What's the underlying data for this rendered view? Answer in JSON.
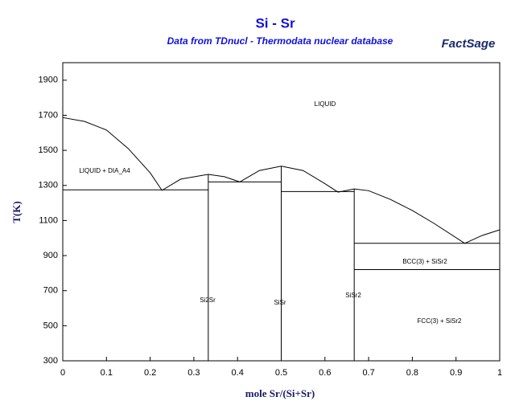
{
  "chart_data": {
    "type": "line",
    "title": "Si - Sr",
    "subtitle": "Data from TDnucl - Thermodata nuclear database",
    "logo": "FactSage",
    "x_label": "mole Sr/(Si+Sr)",
    "y_label": "T(K)",
    "xlim": [
      0,
      1
    ],
    "ylim": [
      300,
      2000
    ],
    "xticks": [
      0,
      0.1,
      0.2,
      0.3,
      0.4,
      0.5,
      0.6,
      0.7,
      0.8,
      0.9,
      1
    ],
    "yticks": [
      300,
      500,
      700,
      900,
      1100,
      1300,
      1500,
      1700,
      1900
    ],
    "series": [
      {
        "color": "#000000",
        "x": [
          0,
          0.05,
          0.1,
          0.15,
          0.2,
          0.227,
          0.27,
          0.333,
          0.37,
          0.405,
          0.45,
          0.5,
          0.55,
          0.6,
          0.63,
          0.667,
          0.7,
          0.75,
          0.8,
          0.85,
          0.92,
          0.96,
          1
        ],
        "values": [
          1687,
          1665,
          1616,
          1510,
          1372,
          1272,
          1336,
          1363,
          1350,
          1320,
          1385,
          1410,
          1385,
          1310,
          1262,
          1280,
          1270,
          1220,
          1157,
          1083,
          970,
          1015,
          1047
        ]
      },
      {
        "color": "#000000",
        "x": [
          0,
          0.333
        ],
        "values": [
          1275,
          1275
        ]
      },
      {
        "color": "#000000",
        "x": [
          0.333,
          0.5
        ],
        "values": [
          1320,
          1320
        ]
      },
      {
        "color": "#000000",
        "x": [
          0.5,
          0.667
        ],
        "values": [
          1265,
          1265
        ]
      },
      {
        "color": "#000000",
        "x": [
          0.667,
          1
        ],
        "values": [
          970,
          970
        ]
      },
      {
        "color": "#000000",
        "x": [
          0.667,
          1
        ],
        "values": [
          820,
          820
        ]
      },
      {
        "color": "#000000",
        "x": [
          0.333,
          0.333
        ],
        "values": [
          300,
          1365
        ]
      },
      {
        "color": "#000000",
        "x": [
          0.5,
          0.5
        ],
        "values": [
          300,
          1410
        ]
      },
      {
        "color": "#000000",
        "x": [
          0.667,
          0.667
        ],
        "values": [
          300,
          1280
        ]
      }
    ],
    "annotations": [
      "LIQUID",
      "LIQUID + DIA_A4",
      "Si2Sr",
      "SiSr",
      "SiSr2",
      "BCC(3) + SiSr2",
      "FCC(3) + SiSr2"
    ]
  }
}
